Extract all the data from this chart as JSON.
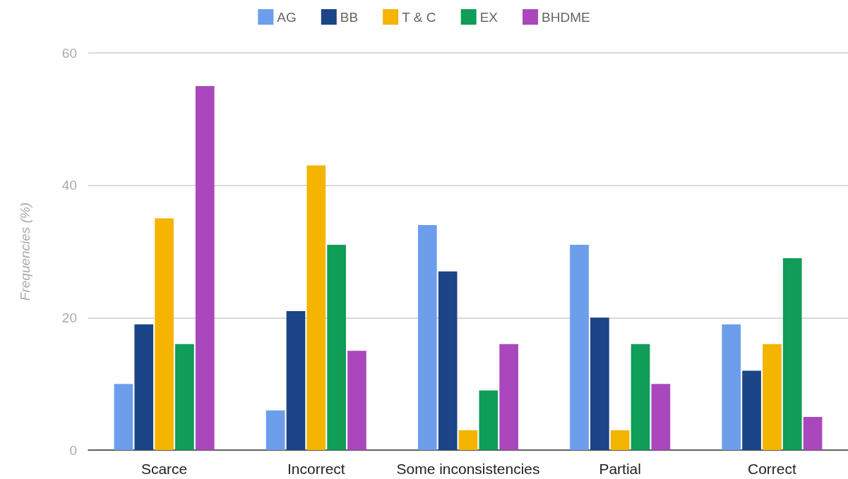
{
  "chart_data": {
    "type": "bar",
    "ylabel": "Frequencies (%)",
    "categories": [
      "Scarce",
      "Incorrect",
      "Some inconsistencies",
      "Partial",
      "Correct"
    ],
    "series": [
      {
        "name": "AG",
        "color": "#6d9eeb",
        "values": [
          10,
          6,
          34,
          31,
          19
        ]
      },
      {
        "name": "BB",
        "color": "#1c4587",
        "values": [
          19,
          21,
          27,
          20,
          12
        ]
      },
      {
        "name": "T & C",
        "color": "#f4b400",
        "values": [
          35,
          43,
          3,
          3,
          16
        ]
      },
      {
        "name": "EX",
        "color": "#0f9d58",
        "values": [
          16,
          31,
          9,
          16,
          29
        ]
      },
      {
        "name": "BHDME",
        "color": "#ab47bc",
        "values": [
          55,
          15,
          16,
          10,
          5
        ]
      }
    ],
    "ylim": [
      0,
      60
    ],
    "yticks": [
      0,
      20,
      40,
      60
    ],
    "grid": "y",
    "legend": "top"
  }
}
